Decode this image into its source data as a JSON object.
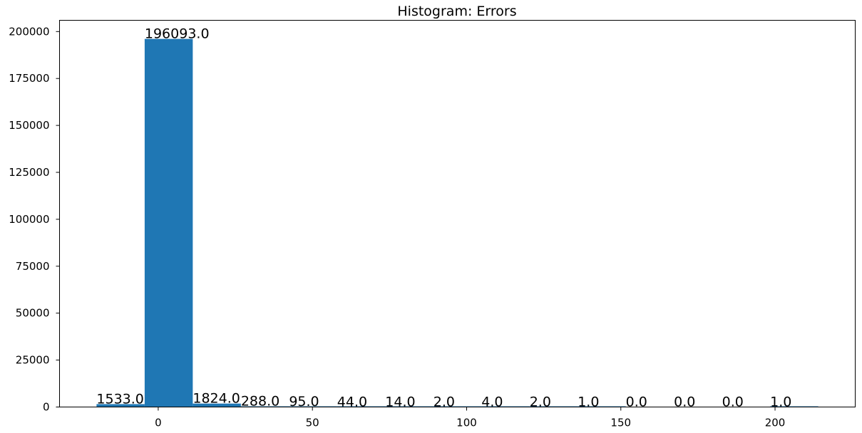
{
  "chart_data": {
    "type": "bar",
    "title": "Histogram: Errors",
    "xlabel": "",
    "ylabel": "",
    "bin_edges": [
      -20,
      -4.4,
      11.2,
      26.8,
      42.4,
      58,
      73.6,
      89.2,
      104.8,
      120.4,
      136,
      151.6,
      167.2,
      182.8,
      198.4,
      214
    ],
    "values": [
      1533,
      196093,
      1824,
      288,
      95,
      44,
      14,
      2,
      4,
      2,
      1,
      0,
      0,
      0,
      1
    ],
    "labels": [
      "1533.0",
      "196093.0",
      "1824.0",
      "288.0",
      "95.0",
      "44.0",
      "14.0",
      "2.0",
      "4.0",
      "2.0",
      "1.0",
      "0.0",
      "0.0",
      "0.0",
      "1.0"
    ],
    "xlim": [
      -32,
      226
    ],
    "ylim": [
      0,
      206000
    ],
    "xticks": [
      0,
      50,
      100,
      150,
      200
    ],
    "xtick_labels": [
      "0",
      "50",
      "100",
      "150",
      "200"
    ],
    "yticks": [
      0,
      25000,
      50000,
      75000,
      100000,
      125000,
      150000,
      175000,
      200000
    ],
    "ytick_labels": [
      "0",
      "25000",
      "50000",
      "75000",
      "100000",
      "125000",
      "150000",
      "175000",
      "200000"
    ],
    "grid": false,
    "bar_color": "#1f77b4"
  }
}
